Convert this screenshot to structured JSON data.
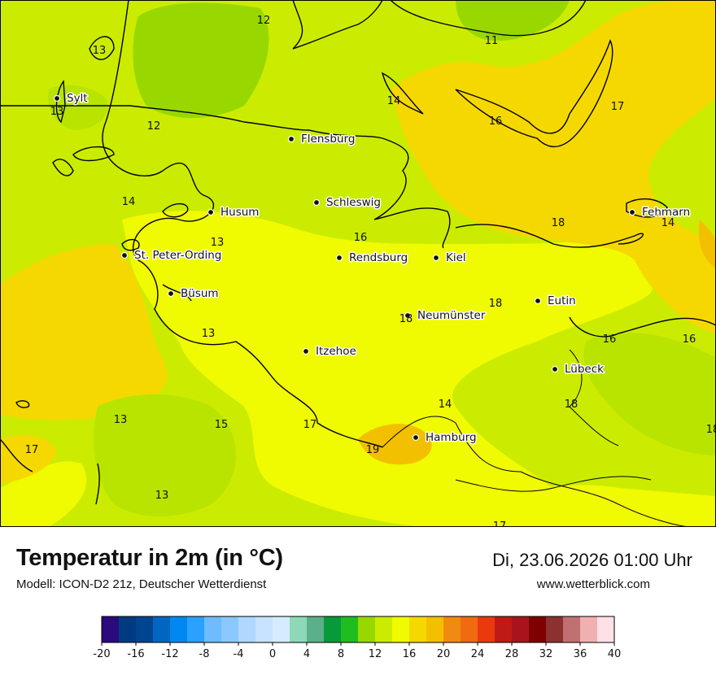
{
  "header": {
    "title": "Temperatur in 2m (in °C)",
    "model": "Modell: ICON-D2 21z, Deutscher Wetterdienst",
    "datetime": "Di, 23.06.2026 01:00 Uhr",
    "website": "www.wetterblick.com"
  },
  "cities": [
    {
      "name": "Sylt"
    },
    {
      "name": "Flensburg"
    },
    {
      "name": "Schleswig"
    },
    {
      "name": "Husum"
    },
    {
      "name": "St. Peter-Ording"
    },
    {
      "name": "Rendsburg"
    },
    {
      "name": "Kiel"
    },
    {
      "name": "Büsum"
    },
    {
      "name": "Neumünster"
    },
    {
      "name": "Eutin"
    },
    {
      "name": "Itzehoe"
    },
    {
      "name": "Lübeck"
    },
    {
      "name": "Hamburg"
    },
    {
      "name": "Fehmarn"
    }
  ],
  "value_labels": [
    "12",
    "13",
    "11",
    "13",
    "14",
    "16",
    "17",
    "12",
    "14",
    "18",
    "14",
    "13",
    "16",
    "18",
    "13",
    "18",
    "16",
    "16",
    "18",
    "13",
    "14",
    "13",
    "15",
    "17",
    "19",
    "18",
    "17",
    "13",
    "17",
    "18"
  ],
  "legend": {
    "min": -20,
    "max": 40,
    "tick_labels": [
      "-20",
      "-16",
      "-12",
      "-8",
      "-4",
      "0",
      "4",
      "8",
      "12",
      "16",
      "20",
      "24",
      "28",
      "32",
      "36",
      "40"
    ],
    "colors": [
      "#2a0a7c",
      "#003a80",
      "#00458f",
      "#0066c2",
      "#0088f0",
      "#2aa0ff",
      "#6ebcff",
      "#8ac8ff",
      "#b0d8ff",
      "#c8e2ff",
      "#d6ebff",
      "#8ed8b8",
      "#5bb08a",
      "#089a3a",
      "#1fbd1f",
      "#98d800",
      "#cbec00",
      "#f0fa00",
      "#f5d800",
      "#f3c000",
      "#f18a10",
      "#f06a10",
      "#e83a0c",
      "#c01a16",
      "#a8141c",
      "#7e0000",
      "#8c3030",
      "#c07070",
      "#f0b0b0",
      "#ffe0e8"
    ]
  }
}
